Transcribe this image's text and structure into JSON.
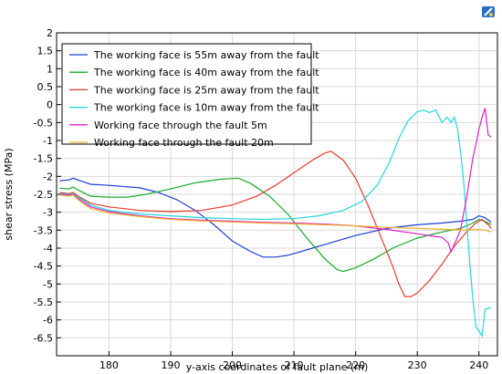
{
  "chart_data": {
    "type": "line",
    "title": "",
    "xlabel": "y-axis coordinates of fault plane (m)",
    "ylabel": "shear stress (MPa)",
    "xlim": [
      171.5,
      243
    ],
    "ylim": [
      -7,
      2
    ],
    "xticks": [
      180,
      190,
      200,
      210,
      220,
      230,
      240
    ],
    "yticks": [
      2,
      1.5,
      1,
      0.5,
      0,
      -0.5,
      -1,
      -1.5,
      -2,
      -2.5,
      -3,
      -3.5,
      -4,
      -4.5,
      -5,
      -5.5,
      -6,
      -6.5
    ],
    "grid": true,
    "legend_position": "top-left",
    "series": [
      {
        "name": "The working face is 55m away from the fault",
        "color": "#1f3fd6",
        "points": [
          [
            172,
            -2.12
          ],
          [
            173.5,
            -2.1
          ],
          [
            174.2,
            -2.05
          ],
          [
            175,
            -2.1
          ],
          [
            177,
            -2.22
          ],
          [
            180,
            -2.25
          ],
          [
            185,
            -2.32
          ],
          [
            188,
            -2.45
          ],
          [
            191,
            -2.65
          ],
          [
            194,
            -2.95
          ],
          [
            197,
            -3.35
          ],
          [
            200,
            -3.8
          ],
          [
            203,
            -4.1
          ],
          [
            205,
            -4.25
          ],
          [
            207,
            -4.25
          ],
          [
            209,
            -4.2
          ],
          [
            212,
            -4.05
          ],
          [
            216,
            -3.85
          ],
          [
            220,
            -3.65
          ],
          [
            225,
            -3.45
          ],
          [
            230,
            -3.35
          ],
          [
            234,
            -3.3
          ],
          [
            237,
            -3.25
          ],
          [
            239,
            -3.2
          ],
          [
            240,
            -3.1
          ],
          [
            241,
            -3.15
          ],
          [
            242,
            -3.28
          ]
        ]
      },
      {
        "name": "The working face is 40m away from the fault",
        "color": "#1aaa2a",
        "points": [
          [
            172,
            -2.33
          ],
          [
            173.5,
            -2.35
          ],
          [
            174.2,
            -2.3
          ],
          [
            175,
            -2.38
          ],
          [
            177,
            -2.55
          ],
          [
            180,
            -2.58
          ],
          [
            183,
            -2.58
          ],
          [
            186,
            -2.5
          ],
          [
            190,
            -2.35
          ],
          [
            194,
            -2.18
          ],
          [
            198,
            -2.08
          ],
          [
            201,
            -2.05
          ],
          [
            203,
            -2.2
          ],
          [
            206,
            -2.55
          ],
          [
            209,
            -3.05
          ],
          [
            212,
            -3.7
          ],
          [
            215,
            -4.3
          ],
          [
            217,
            -4.6
          ],
          [
            218,
            -4.65
          ],
          [
            220,
            -4.55
          ],
          [
            223,
            -4.3
          ],
          [
            226,
            -4.0
          ],
          [
            230,
            -3.72
          ],
          [
            234,
            -3.55
          ],
          [
            237,
            -3.45
          ],
          [
            239,
            -3.3
          ],
          [
            240,
            -3.2
          ],
          [
            241,
            -3.25
          ],
          [
            242,
            -3.35
          ]
        ]
      },
      {
        "name": "The working face is 25m away from the fault",
        "color": "#e83a2a",
        "points": [
          [
            172,
            -2.45
          ],
          [
            173.5,
            -2.48
          ],
          [
            174.2,
            -2.45
          ],
          [
            175,
            -2.55
          ],
          [
            177,
            -2.75
          ],
          [
            180,
            -2.85
          ],
          [
            185,
            -2.95
          ],
          [
            190,
            -2.98
          ],
          [
            195,
            -2.95
          ],
          [
            200,
            -2.8
          ],
          [
            204,
            -2.55
          ],
          [
            207,
            -2.25
          ],
          [
            210,
            -1.9
          ],
          [
            213,
            -1.55
          ],
          [
            215,
            -1.35
          ],
          [
            216,
            -1.3
          ],
          [
            218,
            -1.55
          ],
          [
            220,
            -2.05
          ],
          [
            222,
            -2.8
          ],
          [
            224,
            -3.65
          ],
          [
            226,
            -4.5
          ],
          [
            227,
            -5.0
          ],
          [
            228,
            -5.35
          ],
          [
            229,
            -5.35
          ],
          [
            230,
            -5.25
          ],
          [
            232,
            -4.9
          ],
          [
            234,
            -4.45
          ],
          [
            236,
            -3.95
          ],
          [
            238,
            -3.55
          ],
          [
            239.5,
            -3.3
          ],
          [
            240.5,
            -3.2
          ],
          [
            241.5,
            -3.35
          ],
          [
            242,
            -3.45
          ]
        ]
      },
      {
        "name": "The working face is 10m away from the fault",
        "color": "#22d6dc",
        "points": [
          [
            172,
            -2.48
          ],
          [
            173.5,
            -2.5
          ],
          [
            174.2,
            -2.48
          ],
          [
            175,
            -2.58
          ],
          [
            177,
            -2.8
          ],
          [
            180,
            -2.95
          ],
          [
            185,
            -3.05
          ],
          [
            190,
            -3.1
          ],
          [
            195,
            -3.15
          ],
          [
            200,
            -3.18
          ],
          [
            205,
            -3.2
          ],
          [
            210,
            -3.18
          ],
          [
            214,
            -3.1
          ],
          [
            218,
            -2.95
          ],
          [
            221,
            -2.7
          ],
          [
            223.5,
            -2.25
          ],
          [
            225.5,
            -1.6
          ],
          [
            227,
            -0.95
          ],
          [
            228.5,
            -0.45
          ],
          [
            230,
            -0.2
          ],
          [
            231,
            -0.15
          ],
          [
            232,
            -0.22
          ],
          [
            233,
            -0.15
          ],
          [
            234,
            -0.5
          ],
          [
            234.8,
            -0.35
          ],
          [
            235.5,
            -0.5
          ],
          [
            236,
            -0.35
          ],
          [
            236.5,
            -0.65
          ],
          [
            237,
            -1.3
          ],
          [
            237.5,
            -2.1
          ],
          [
            238,
            -3.2
          ],
          [
            238.5,
            -4.4
          ],
          [
            239,
            -5.4
          ],
          [
            239.5,
            -6.2
          ],
          [
            240,
            -6.3
          ],
          [
            240.5,
            -6.45
          ],
          [
            241,
            -5.7
          ],
          [
            242,
            -5.65
          ]
        ]
      },
      {
        "name": "Working face through the fault 5m",
        "color": "#dd22cc",
        "points": [
          [
            172,
            -2.5
          ],
          [
            173.5,
            -2.52
          ],
          [
            174.2,
            -2.5
          ],
          [
            175,
            -2.62
          ],
          [
            177,
            -2.85
          ],
          [
            180,
            -2.98
          ],
          [
            185,
            -3.1
          ],
          [
            190,
            -3.18
          ],
          [
            195,
            -3.22
          ],
          [
            200,
            -3.25
          ],
          [
            205,
            -3.28
          ],
          [
            210,
            -3.3
          ],
          [
            215,
            -3.33
          ],
          [
            220,
            -3.38
          ],
          [
            225,
            -3.48
          ],
          [
            230,
            -3.6
          ],
          [
            233,
            -3.68
          ],
          [
            234,
            -3.7
          ],
          [
            235,
            -3.85
          ],
          [
            235.5,
            -4.1
          ],
          [
            236,
            -3.9
          ],
          [
            237,
            -3.5
          ],
          [
            238,
            -2.6
          ],
          [
            239,
            -1.5
          ],
          [
            240,
            -0.7
          ],
          [
            240.5,
            -0.35
          ],
          [
            241,
            -0.1
          ],
          [
            241.5,
            -0.85
          ],
          [
            242,
            -0.9
          ]
        ]
      },
      {
        "name": "Working face through the fault 20m",
        "color": "#f0b020",
        "points": [
          [
            172,
            -2.52
          ],
          [
            173.5,
            -2.55
          ],
          [
            174.2,
            -2.52
          ],
          [
            175,
            -2.65
          ],
          [
            177,
            -2.9
          ],
          [
            180,
            -3.02
          ],
          [
            185,
            -3.12
          ],
          [
            190,
            -3.2
          ],
          [
            195,
            -3.24
          ],
          [
            200,
            -3.27
          ],
          [
            205,
            -3.3
          ],
          [
            210,
            -3.32
          ],
          [
            215,
            -3.35
          ],
          [
            220,
            -3.38
          ],
          [
            225,
            -3.42
          ],
          [
            230,
            -3.45
          ],
          [
            235,
            -3.48
          ],
          [
            238,
            -3.5
          ],
          [
            240,
            -3.48
          ],
          [
            241,
            -3.5
          ],
          [
            242,
            -3.55
          ]
        ]
      }
    ]
  }
}
